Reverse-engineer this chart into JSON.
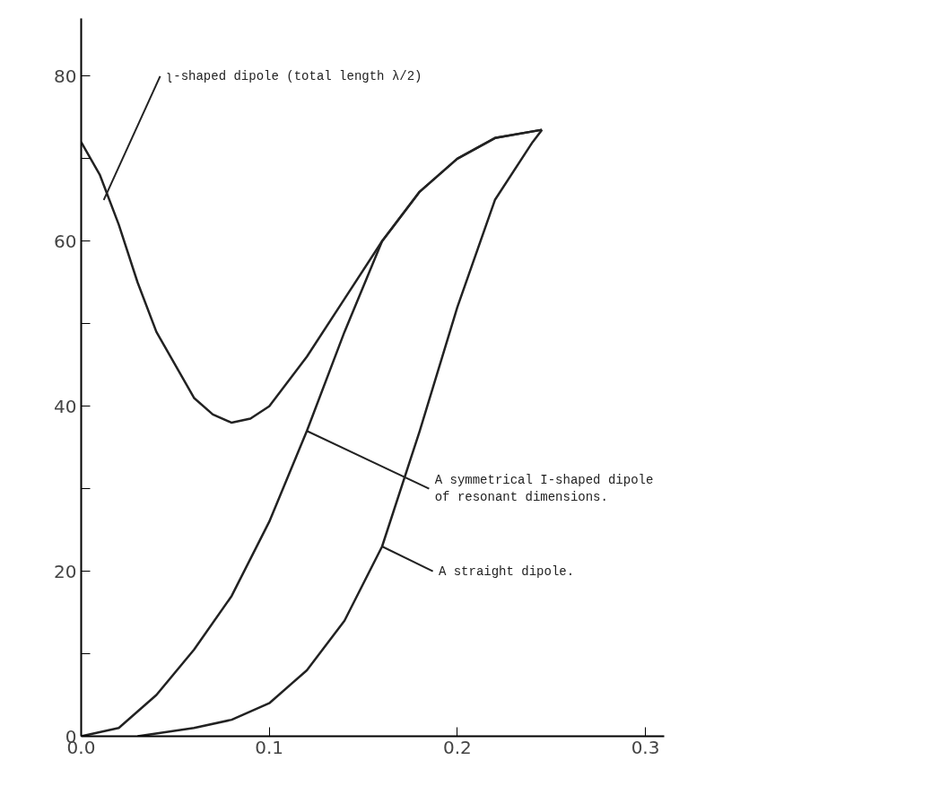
{
  "chart_data": {
    "type": "line",
    "xlim": [
      0,
      0.31
    ],
    "ylim": [
      0,
      87
    ],
    "xticks": [
      {
        "value": 0,
        "label": "0.0"
      },
      {
        "value": 0.1,
        "label": "0.1"
      },
      {
        "value": 0.2,
        "label": "0.2"
      },
      {
        "value": 0.3,
        "label": "0.3"
      }
    ],
    "yticks": [
      0,
      {
        "value": 10,
        "label": null
      },
      20,
      {
        "value": 30,
        "label": null
      },
      40,
      {
        "value": 50,
        "label": null
      },
      60,
      {
        "value": 70,
        "label": null
      },
      80
    ],
    "grid": false,
    "marker": "none",
    "line_style": "solid",
    "series": [
      {
        "color": "#222222",
        "x": [
          0,
          0.01,
          0.02,
          0.03,
          0.04,
          0.05,
          0.06,
          0.07,
          0.08,
          0.09,
          0.1,
          0.12,
          0.14,
          0.16,
          0.18,
          0.2,
          0.22,
          0.245
        ],
        "values": [
          72,
          68,
          62,
          55,
          49,
          45,
          41,
          39,
          38,
          38.5,
          40,
          46,
          53,
          60,
          66,
          70,
          72.5,
          73.5
        ]
      },
      {
        "color": "#222222",
        "x": [
          0,
          0.02,
          0.04,
          0.06,
          0.08,
          0.1,
          0.12,
          0.14,
          0.16,
          0.18,
          0.2,
          0.22,
          0.245
        ],
        "values": [
          0,
          1,
          5,
          10.5,
          17,
          26,
          37,
          49,
          60,
          66,
          70,
          72.5,
          73.5
        ]
      },
      {
        "color": "#222222",
        "x": [
          0.03,
          0.06,
          0.08,
          0.1,
          0.12,
          0.14,
          0.16,
          0.18,
          0.2,
          0.22,
          0.24,
          0.245
        ],
        "values": [
          0,
          1,
          2,
          4,
          8,
          14,
          23,
          37,
          52,
          65,
          72,
          73.5
        ]
      }
    ],
    "annotations": [
      {
        "text": "ʅ-shaped dipole (total length λ/2)",
        "x": 0.012,
        "y": 65
      },
      {
        "text": "A symmetrical I-shaped dipole\nof resonant dimensions.",
        "x": 0.12,
        "y": 37
      },
      {
        "text": "A straight dipole.",
        "x": 0.16,
        "y": 23
      }
    ]
  }
}
